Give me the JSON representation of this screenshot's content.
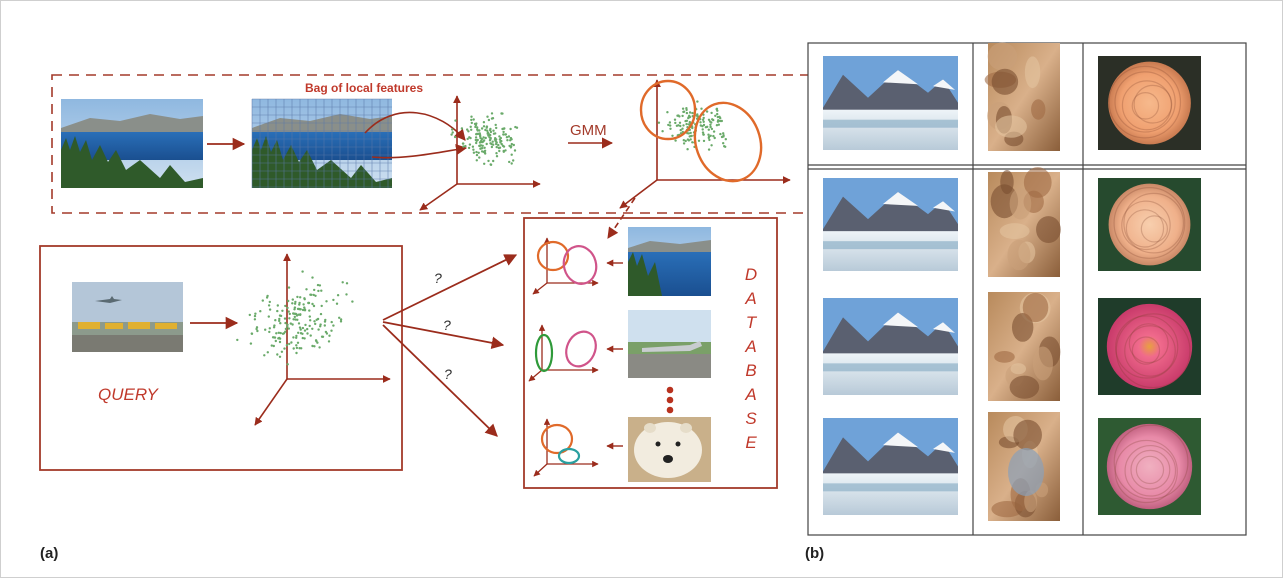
{
  "figure": {
    "panel_a": {
      "label": "(a)",
      "bag_label": "Bag of local features",
      "gmm_label": "GMM",
      "query_label": "QUERY",
      "database_letters": [
        "D",
        "A",
        "T",
        "A",
        "B",
        "A",
        "S",
        "E"
      ],
      "question_marks": [
        "?",
        "?",
        "?"
      ],
      "database_images": [
        "lake-landscape-image",
        "airplane-runway-image",
        "polar-bear-image"
      ]
    },
    "panel_b": {
      "label": "(b)",
      "grid": {
        "rows": 4,
        "columns": [
          "mountain-landscape",
          "fresco-painting",
          "rose-flower"
        ],
        "row_kinds": [
          "query",
          "result",
          "result",
          "result"
        ]
      }
    },
    "colors": {
      "accent": "#a33a2a",
      "arrow": "#9b2c1c",
      "points": "#6aaa6a",
      "ellipse_orange": "#e06a2a",
      "ellipse_pink": "#d0548a",
      "ellipse_green": "#2f9a3a",
      "ellipse_teal": "#2aa0a0"
    }
  }
}
